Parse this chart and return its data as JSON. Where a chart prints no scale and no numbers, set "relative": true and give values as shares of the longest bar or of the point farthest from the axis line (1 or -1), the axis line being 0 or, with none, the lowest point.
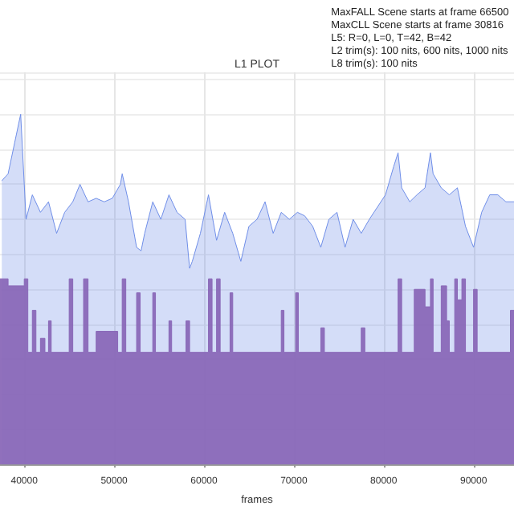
{
  "chart_data": {
    "type": "area",
    "title": "L1 PLOT",
    "xlabel": "frames",
    "relative": true,
    "grid": true,
    "xlim": [
      37300,
      94500
    ],
    "xticks": [
      40000,
      50000,
      60000,
      70000,
      80000,
      90000
    ],
    "annotations": [
      "MaxFALL Scene starts at frame 66500",
      "MaxCLL Scene starts at frame 30816",
      "L5: R=0, L=0, T=42, B=42",
      "L2 trim(s): 100 nits, 600 nits, 1000 nits",
      "L8 trim(s): 100 nits"
    ],
    "series": [
      {
        "color": "#6f8ee8",
        "x": [
          37500,
          38200,
          39600,
          40200,
          40900,
          41800,
          42700,
          43600,
          44500,
          45400,
          46200,
          47100,
          48000,
          48900,
          49800,
          50700,
          50900,
          51600,
          52500,
          53000,
          53400,
          54300,
          55200,
          56100,
          57000,
          57900,
          58400,
          58700,
          59600,
          60500,
          61400,
          62300,
          63200,
          64100,
          65000,
          65900,
          66800,
          67700,
          68600,
          69500,
          70400,
          71200,
          72100,
          73000,
          73900,
          74800,
          75700,
          76600,
          77500,
          78400,
          80200,
          81100,
          81600,
          82000,
          82900,
          83700,
          84600,
          85200,
          85500,
          86400,
          87300,
          88200,
          89100,
          90000,
          90900,
          91800,
          92700,
          93600,
          94500
        ],
        "values": [
          0.81,
          0.83,
          1.0,
          0.7,
          0.77,
          0.72,
          0.75,
          0.66,
          0.72,
          0.75,
          0.8,
          0.75,
          0.76,
          0.75,
          0.76,
          0.8,
          0.83,
          0.75,
          0.62,
          0.61,
          0.66,
          0.75,
          0.7,
          0.77,
          0.72,
          0.7,
          0.56,
          0.58,
          0.66,
          0.77,
          0.64,
          0.72,
          0.66,
          0.58,
          0.68,
          0.7,
          0.75,
          0.66,
          0.72,
          0.7,
          0.72,
          0.71,
          0.68,
          0.62,
          0.7,
          0.72,
          0.62,
          0.7,
          0.66,
          0.7,
          0.77,
          0.85,
          0.89,
          0.79,
          0.75,
          0.77,
          0.79,
          0.89,
          0.83,
          0.79,
          0.77,
          0.79,
          0.68,
          0.62,
          0.72,
          0.77,
          0.77,
          0.75,
          0.75
        ]
      },
      {
        "color": "#8a68b8",
        "x": [
          37300,
          38200,
          38200,
          40000,
          40000,
          40400,
          40400,
          40900,
          40900,
          41300,
          41300,
          41800,
          41800,
          42300,
          42300,
          42700,
          42700,
          43000,
          43000,
          45000,
          45000,
          45400,
          45400,
          46600,
          46600,
          47100,
          47100,
          48000,
          48000,
          50400,
          50400,
          50900,
          50900,
          51300,
          51300,
          52500,
          52500,
          52900,
          52900,
          54300,
          54300,
          54600,
          54600,
          56100,
          56100,
          56400,
          56400,
          58000,
          58000,
          58400,
          58400,
          60500,
          60500,
          60900,
          60900,
          61400,
          61400,
          61800,
          61800,
          62900,
          62900,
          63200,
          63200,
          68600,
          68600,
          68900,
          68900,
          70200,
          70200,
          70500,
          70500,
          73000,
          73000,
          73400,
          73400,
          77500,
          77500,
          77900,
          77900,
          81600,
          81600,
          82000,
          82000,
          83400,
          83400,
          84600,
          84600,
          85200,
          85200,
          85500,
          85500,
          86400,
          86400,
          87000,
          87000,
          87300,
          87300,
          87900,
          87900,
          88200,
          88200,
          88700,
          88700,
          89100,
          89100,
          90000,
          90000,
          90400,
          90400,
          94100,
          94100,
          94500
        ],
        "values": [
          0.53,
          0.53,
          0.51,
          0.51,
          0.53,
          0.53,
          0.32,
          0.32,
          0.44,
          0.44,
          0.32,
          0.32,
          0.36,
          0.36,
          0.32,
          0.32,
          0.41,
          0.41,
          0.32,
          0.32,
          0.53,
          0.53,
          0.32,
          0.32,
          0.53,
          0.53,
          0.32,
          0.32,
          0.38,
          0.38,
          0.32,
          0.32,
          0.53,
          0.53,
          0.32,
          0.32,
          0.49,
          0.49,
          0.32,
          0.32,
          0.49,
          0.49,
          0.32,
          0.32,
          0.41,
          0.41,
          0.32,
          0.32,
          0.41,
          0.41,
          0.32,
          0.32,
          0.53,
          0.53,
          0.32,
          0.32,
          0.53,
          0.53,
          0.32,
          0.32,
          0.49,
          0.49,
          0.32,
          0.32,
          0.44,
          0.44,
          0.32,
          0.32,
          0.49,
          0.49,
          0.32,
          0.32,
          0.39,
          0.39,
          0.32,
          0.32,
          0.39,
          0.39,
          0.32,
          0.32,
          0.53,
          0.53,
          0.32,
          0.32,
          0.5,
          0.5,
          0.45,
          0.45,
          0.53,
          0.53,
          0.32,
          0.32,
          0.51,
          0.51,
          0.41,
          0.41,
          0.32,
          0.32,
          0.53,
          0.53,
          0.47,
          0.47,
          0.53,
          0.53,
          0.32,
          0.32,
          0.5,
          0.5,
          0.32,
          0.32,
          0.44,
          0.44
        ]
      }
    ]
  }
}
